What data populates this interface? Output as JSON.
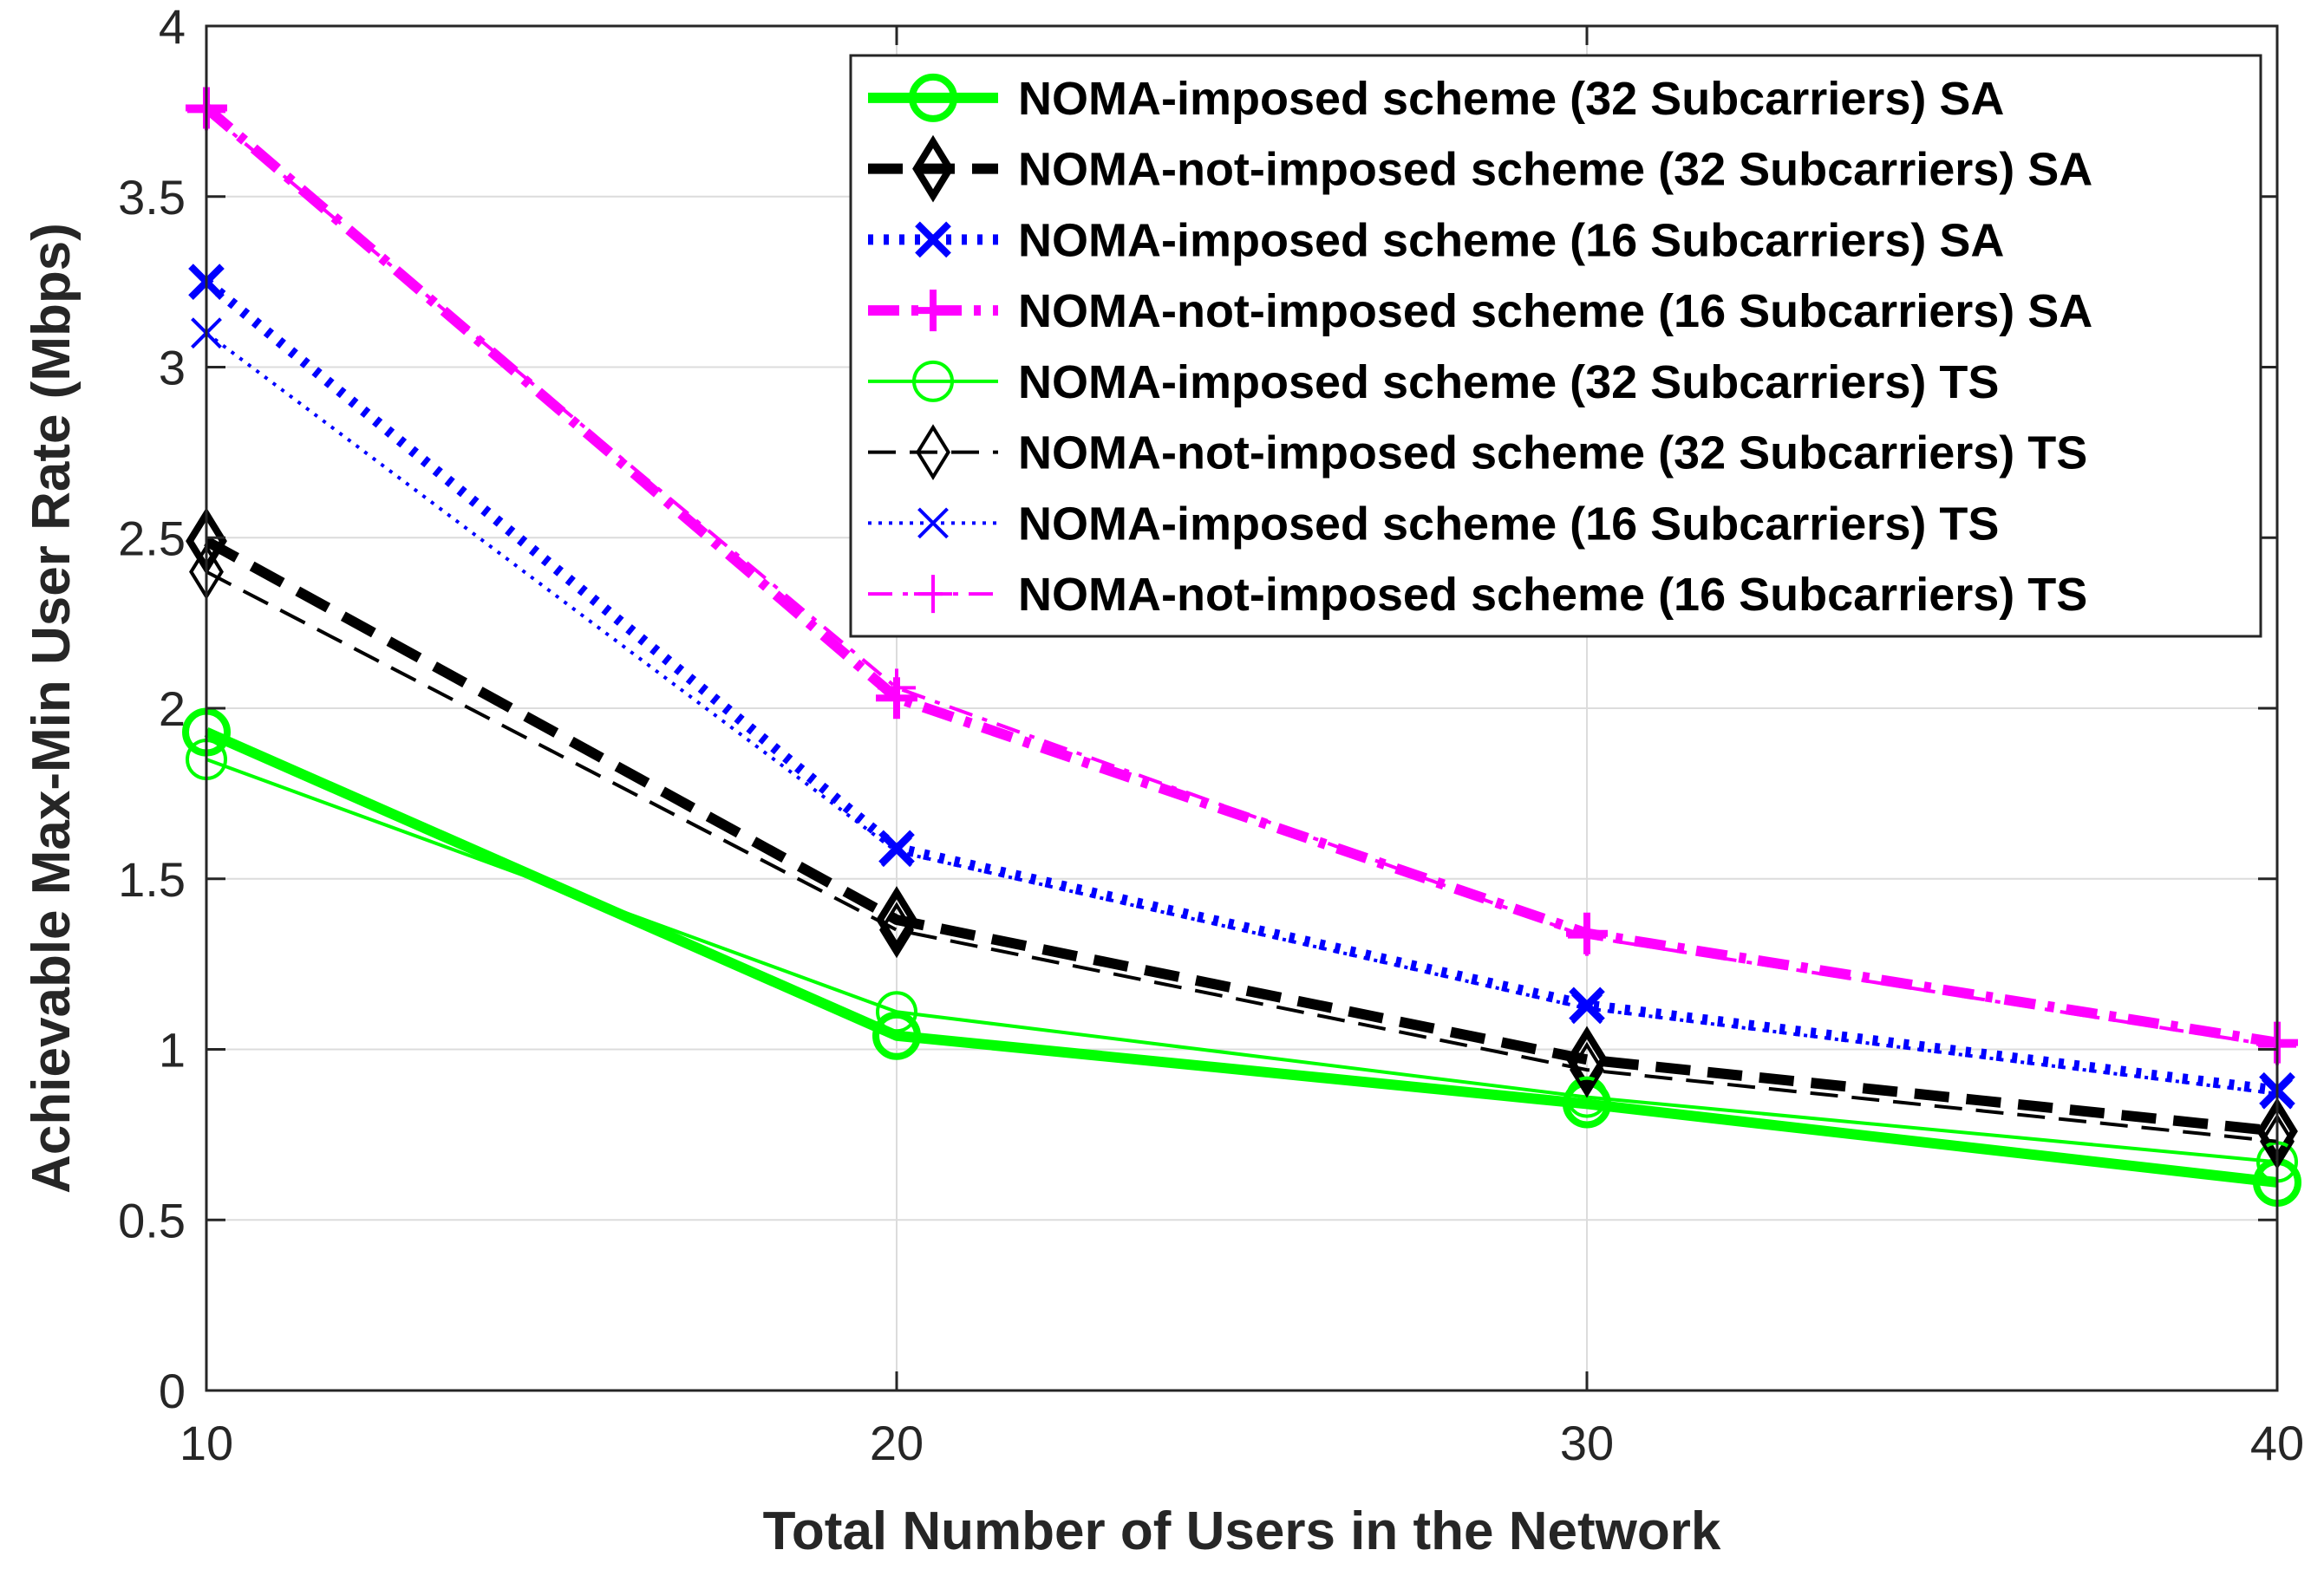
{
  "chart_data": {
    "type": "line",
    "title": "",
    "xlabel": "Total Number of Users in the Network",
    "ylabel": "Achievable Max-Min User Rate (Mbps)",
    "xlim": [
      10,
      40
    ],
    "ylim": [
      0,
      4
    ],
    "xticks": [
      10,
      20,
      30,
      40
    ],
    "xtick_labels": [
      "10",
      "20",
      "30",
      "40"
    ],
    "yticks": [
      0,
      0.5,
      1,
      1.5,
      2,
      2.5,
      3,
      3.5,
      4
    ],
    "ytick_labels": [
      "0",
      "0.5",
      "1",
      "1.5",
      "2",
      "2.5",
      "3",
      "3.5",
      "4"
    ],
    "grid": true,
    "legend_position": "top-right",
    "x": [
      10,
      20,
      30,
      40
    ],
    "series": [
      {
        "name": "NOMA-imposed scheme (32 Subcarriers) SA",
        "values": [
          1.93,
          1.04,
          0.84,
          0.61
        ],
        "color": "#00ff00",
        "style": "solid",
        "marker": "circle",
        "weight": "thick"
      },
      {
        "name": "NOMA-not-imposed scheme (32 Subcarriers) SA",
        "values": [
          2.49,
          1.38,
          0.97,
          0.76
        ],
        "color": "#000000",
        "style": "dashed",
        "marker": "diamond",
        "weight": "thick"
      },
      {
        "name": "NOMA-imposed scheme (16 Subcarriers) SA",
        "values": [
          3.25,
          1.59,
          1.13,
          0.88
        ],
        "color": "#0000ff",
        "style": "dotted",
        "marker": "x",
        "weight": "thick"
      },
      {
        "name": "NOMA-not-imposed scheme (16 Subcarriers) SA",
        "values": [
          3.76,
          2.03,
          1.34,
          1.02
        ],
        "color": "#ff00ff",
        "style": "dashdot",
        "marker": "plus",
        "weight": "thick"
      },
      {
        "name": "NOMA-imposed scheme (32 Subcarriers) TS",
        "values": [
          1.85,
          1.11,
          0.86,
          0.67
        ],
        "color": "#00ff00",
        "style": "solid",
        "marker": "circle",
        "weight": "thin"
      },
      {
        "name": "NOMA-not-imposed scheme (32 Subcarriers) TS",
        "values": [
          2.4,
          1.35,
          0.94,
          0.73
        ],
        "color": "#000000",
        "style": "dashed",
        "marker": "diamond",
        "weight": "thin"
      },
      {
        "name": "NOMA-imposed scheme (16 Subcarriers) TS",
        "values": [
          3.1,
          1.58,
          1.12,
          0.87
        ],
        "color": "#0000ff",
        "style": "dotted",
        "marker": "x",
        "weight": "thin"
      },
      {
        "name": "NOMA-not-imposed scheme (16 Subcarriers) TS",
        "values": [
          3.75,
          2.06,
          1.33,
          1.01
        ],
        "color": "#ff00ff",
        "style": "dashdot",
        "marker": "plus",
        "weight": "thin"
      }
    ]
  }
}
